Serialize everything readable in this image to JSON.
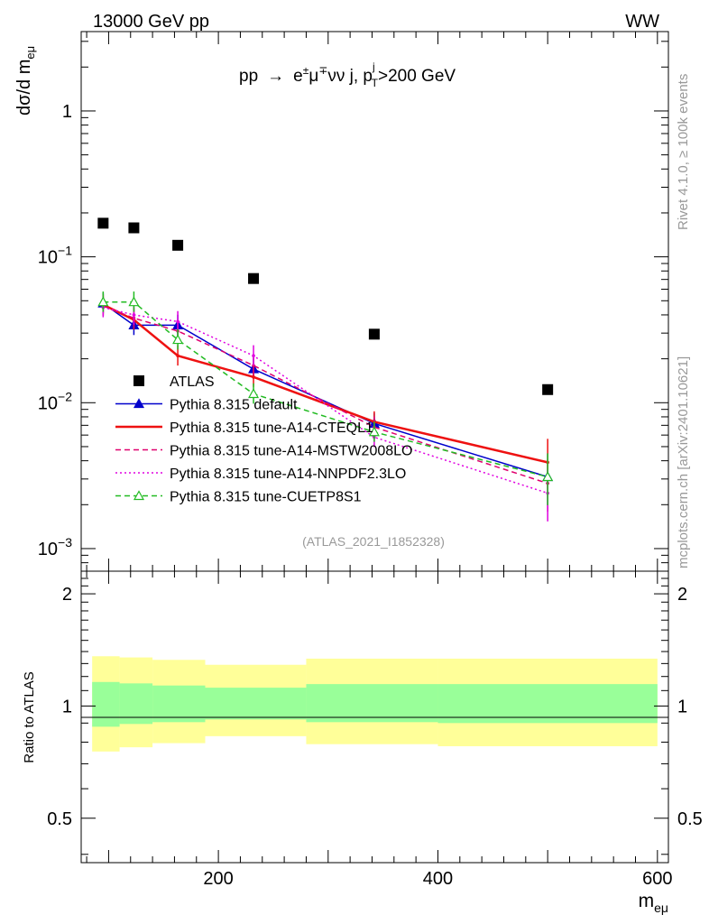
{
  "header": {
    "energy": "13000 GeV pp",
    "process": "WW",
    "side_rivet": "Rivet 4.1.0, ≥ 100k events",
    "side_mcplots": "mcplots.cern.ch [arXiv:2401.10621]",
    "analysis_id": "(ATLAS_2021_I1852328)"
  },
  "chart_data": {
    "type": "line",
    "title": "pp → e±μ∓νν j, p_T^j>200 GeV",
    "xlabel": "m_eμ",
    "ylabel": "dσ/d m_eμ",
    "ratio_ylabel": "Ratio to ATLAS",
    "xlim": [
      75,
      610
    ],
    "ylim": [
      0.0007,
      3.5
    ],
    "ratio_ylim": [
      0.38,
      2.3
    ],
    "yscale": "log",
    "x_ticks": [
      "200",
      "400",
      "600"
    ],
    "y_ticks": [
      "1",
      "10^-1",
      "10^-2",
      "10^-3"
    ],
    "ratio_ticks": [
      "2",
      "1",
      "0.5"
    ],
    "x": [
      95,
      123,
      163,
      232,
      342,
      500
    ],
    "bin_edges": [
      85,
      110,
      140,
      188,
      280,
      400,
      600
    ],
    "legend_position": "center-left",
    "series": [
      {
        "name": "ATLAS",
        "style": "data",
        "color": "#000000",
        "values": [
          0.17,
          0.158,
          0.12,
          0.071,
          0.0295,
          0.0123
        ]
      },
      {
        "name": "Pythia 8.315 default",
        "style": "solid-triangle",
        "color": "#0000cc",
        "values": [
          0.048,
          0.034,
          0.034,
          0.017,
          0.0072,
          0.0031
        ]
      },
      {
        "name": "Pythia 8.315 tune-A14-CTEQL1",
        "style": "solid-thick",
        "color": "#ee1111",
        "values": [
          0.047,
          0.037,
          0.021,
          0.015,
          0.0074,
          0.0039
        ]
      },
      {
        "name": "Pythia 8.315 tune-A14-MSTW2008LO",
        "style": "dashed",
        "color": "#e0006e",
        "values": [
          0.046,
          0.038,
          0.031,
          0.018,
          0.0068,
          0.0028
        ]
      },
      {
        "name": "Pythia 8.315 tune-A14-NNPDF2.3LO",
        "style": "dotted",
        "color": "#e000e0",
        "values": [
          0.045,
          0.04,
          0.036,
          0.021,
          0.0058,
          0.0024
        ]
      },
      {
        "name": "Pythia 8.315 tune-CUETP8S1",
        "style": "dashed-open-triangle",
        "color": "#22bb22",
        "values": [
          0.049,
          0.049,
          0.027,
          0.0115,
          0.0063,
          0.0031
        ]
      }
    ],
    "ratio_bands": {
      "inner": [
        [
          0.88,
          1.16
        ],
        [
          0.895,
          1.15
        ],
        [
          0.905,
          1.135
        ],
        [
          0.92,
          1.12
        ],
        [
          0.905,
          1.145
        ],
        [
          0.9,
          1.145
        ]
      ],
      "outer": [
        [
          0.755,
          1.36
        ],
        [
          0.775,
          1.35
        ],
        [
          0.795,
          1.33
        ],
        [
          0.83,
          1.29
        ],
        [
          0.79,
          1.34
        ],
        [
          0.78,
          1.34
        ]
      ],
      "inner_color": "#99ff99",
      "outer_color": "#ffff99"
    }
  }
}
